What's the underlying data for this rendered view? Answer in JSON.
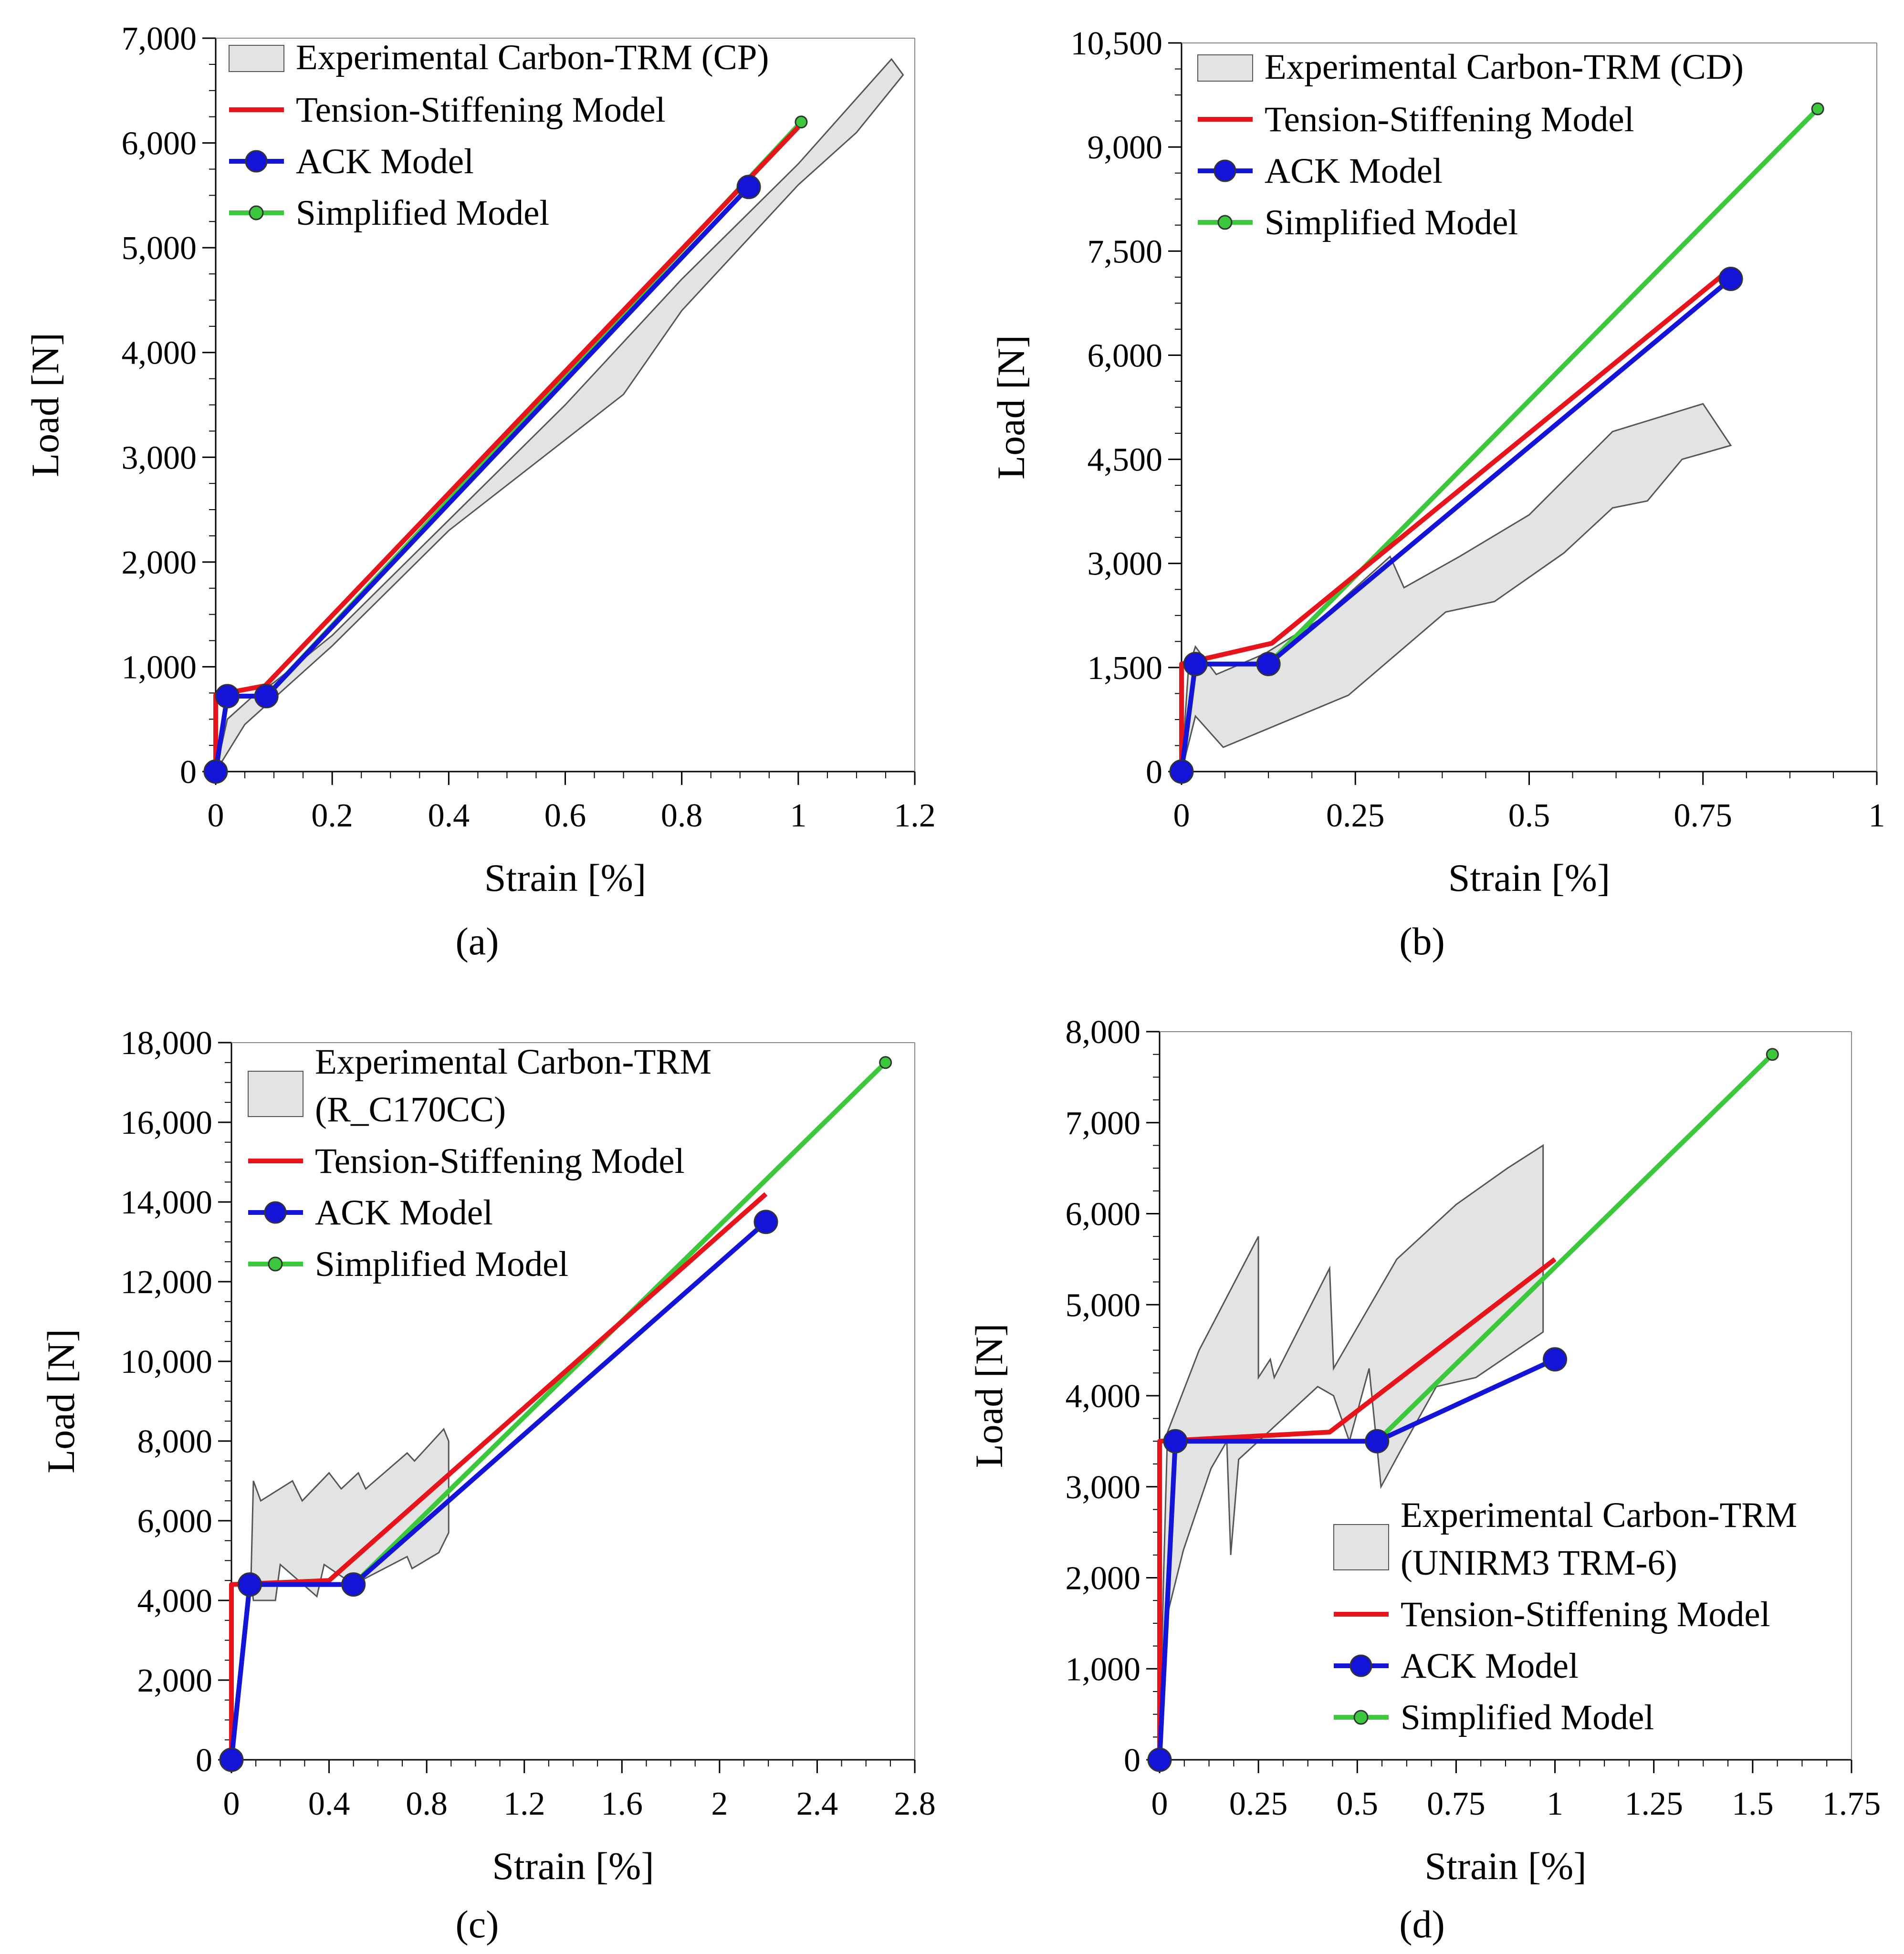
{
  "colors": {
    "tension_stiffening": "#e8141c",
    "ack": "#1414d8",
    "simplified": "#3cc83c",
    "experimental_fill": "#e3e3e3",
    "experimental_stroke": "#555555"
  },
  "legend": {
    "tension_stiffening": "Tension-Stiffening Model",
    "ack": "ACK Model",
    "simplified": "Simplified Model"
  },
  "chart_data": [
    {
      "type": "line",
      "panel": "(a)",
      "xlabel": "Strain  [%]",
      "ylabel": "Load [N]",
      "xlim": [
        0,
        1.2
      ],
      "ylim": [
        0,
        7000
      ],
      "xticks": [
        "0",
        "0.2",
        "0.4",
        "0.6",
        "0.8",
        "1",
        "1.2"
      ],
      "yticks": [
        "0",
        "1,000",
        "2,000",
        "3,000",
        "4,000",
        "5,000",
        "6,000",
        "7,000"
      ],
      "legend_position": "top-left",
      "experimental_label": [
        "Experimental Carbon-TRM (CP)"
      ],
      "experimental_band": {
        "upper": [
          [
            0,
            0
          ],
          [
            0.02,
            500
          ],
          [
            0.06,
            700
          ],
          [
            0.1,
            850
          ],
          [
            0.2,
            1300
          ],
          [
            0.4,
            2400
          ],
          [
            0.6,
            3500
          ],
          [
            0.8,
            4700
          ],
          [
            1.0,
            5800
          ],
          [
            1.16,
            6800
          ]
        ],
        "lower": [
          [
            1.18,
            6650
          ],
          [
            1.1,
            6100
          ],
          [
            1.0,
            5600
          ],
          [
            0.8,
            4400
          ],
          [
            0.7,
            3600
          ],
          [
            0.4,
            2300
          ],
          [
            0.2,
            1200
          ],
          [
            0.1,
            700
          ],
          [
            0.05,
            450
          ],
          [
            0,
            0
          ]
        ]
      },
      "series": [
        {
          "name": "Tension-Stiffening Model",
          "marker": "none",
          "points": [
            [
              0,
              0
            ],
            [
              0,
              730
            ],
            [
              0.085,
              820
            ],
            [
              1.0,
              6150
            ]
          ]
        },
        {
          "name": "ACK Model",
          "marker": "large",
          "points": [
            [
              0,
              0
            ],
            [
              0.02,
              720
            ],
            [
              0.087,
              720
            ],
            [
              0.915,
              5580
            ]
          ]
        },
        {
          "name": "Simplified Model",
          "marker": "small",
          "points": [
            [
              0,
              0
            ],
            [
              0.02,
              720
            ],
            [
              0.087,
              720
            ],
            [
              1.005,
              6200
            ]
          ]
        }
      ]
    },
    {
      "type": "line",
      "panel": "(b)",
      "xlabel": "Strain  [%]",
      "ylabel": "Load [N]",
      "xlim": [
        0,
        1
      ],
      "ylim": [
        0,
        10500
      ],
      "xticks": [
        "0",
        "0.25",
        "0.5",
        "0.75",
        "1"
      ],
      "yticks": [
        "0",
        "1,500",
        "3,000",
        "4,500",
        "6,000",
        "7,500",
        "9,000",
        "10,500"
      ],
      "legend_position": "top-left",
      "experimental_label": [
        "Experimental Carbon-TRM (CD)"
      ],
      "experimental_band": {
        "upper": [
          [
            0,
            0
          ],
          [
            0.01,
            1500
          ],
          [
            0.02,
            1800
          ],
          [
            0.05,
            1400
          ],
          [
            0.12,
            1700
          ],
          [
            0.2,
            2200
          ],
          [
            0.3,
            3100
          ],
          [
            0.32,
            2650
          ],
          [
            0.4,
            3100
          ],
          [
            0.5,
            3700
          ],
          [
            0.62,
            4900
          ],
          [
            0.75,
            5300
          ],
          [
            0.79,
            4700
          ]
        ],
        "lower": [
          [
            0.79,
            4700
          ],
          [
            0.72,
            4500
          ],
          [
            0.67,
            3900
          ],
          [
            0.62,
            3800
          ],
          [
            0.55,
            3150
          ],
          [
            0.45,
            2450
          ],
          [
            0.38,
            2300
          ],
          [
            0.24,
            1100
          ],
          [
            0.06,
            350
          ],
          [
            0.02,
            800
          ],
          [
            0,
            0
          ]
        ]
      },
      "series": [
        {
          "name": "Tension-Stiffening Model",
          "marker": "none",
          "points": [
            [
              0,
              0
            ],
            [
              0,
              1550
            ],
            [
              0.13,
              1850
            ],
            [
              0.79,
              7250
            ]
          ]
        },
        {
          "name": "ACK Model",
          "marker": "large",
          "points": [
            [
              0,
              0
            ],
            [
              0.02,
              1550
            ],
            [
              0.125,
              1550
            ],
            [
              0.79,
              7100
            ]
          ]
        },
        {
          "name": "Simplified Model",
          "marker": "small",
          "points": [
            [
              0,
              0
            ],
            [
              0.02,
              1550
            ],
            [
              0.125,
              1550
            ],
            [
              0.915,
              9550
            ]
          ]
        }
      ]
    },
    {
      "type": "line",
      "panel": "(c)",
      "xlabel": "Strain  [%]",
      "ylabel": "Load [N]",
      "xlim": [
        0,
        2.8
      ],
      "ylim": [
        0,
        18000
      ],
      "xticks": [
        "0",
        "0.4",
        "0.8",
        "1.2",
        "1.6",
        "2",
        "2.4",
        "2.8"
      ],
      "yticks": [
        "0",
        "2,000",
        "4,000",
        "6,000",
        "8,000",
        "10,000",
        "12,000",
        "14,000",
        "16,000",
        "18,000"
      ],
      "legend_position": "top-left",
      "experimental_label": [
        "Experimental Carbon-TRM",
        "(R_C170CC)"
      ],
      "experimental_band": {
        "upper": [
          [
            0.08,
            4500
          ],
          [
            0.09,
            7000
          ],
          [
            0.12,
            6500
          ],
          [
            0.25,
            7000
          ],
          [
            0.29,
            6500
          ],
          [
            0.4,
            7200
          ],
          [
            0.45,
            6800
          ],
          [
            0.52,
            7200
          ],
          [
            0.55,
            6800
          ],
          [
            0.72,
            7700
          ],
          [
            0.75,
            7500
          ],
          [
            0.87,
            8300
          ],
          [
            0.89,
            8000
          ]
        ],
        "lower": [
          [
            0.89,
            5700
          ],
          [
            0.85,
            5200
          ],
          [
            0.74,
            4800
          ],
          [
            0.72,
            5100
          ],
          [
            0.5,
            4400
          ],
          [
            0.38,
            4900
          ],
          [
            0.35,
            4100
          ],
          [
            0.2,
            4900
          ],
          [
            0.18,
            4000
          ],
          [
            0.09,
            4000
          ]
        ]
      },
      "series": [
        {
          "name": "Tension-Stiffening Model",
          "marker": "none",
          "points": [
            [
              0,
              0
            ],
            [
              0,
              4400
            ],
            [
              0.4,
              4500
            ],
            [
              2.19,
              14200
            ]
          ]
        },
        {
          "name": "ACK Model",
          "marker": "large",
          "points": [
            [
              0,
              0
            ],
            [
              0.075,
              4400
            ],
            [
              0.5,
              4400
            ],
            [
              2.19,
              13500
            ]
          ]
        },
        {
          "name": "Simplified Model",
          "marker": "small",
          "points": [
            [
              0,
              0
            ],
            [
              0.075,
              4400
            ],
            [
              0.5,
              4400
            ],
            [
              2.68,
              17500
            ]
          ]
        }
      ]
    },
    {
      "type": "line",
      "panel": "(d)",
      "xlabel": "Strain  [%]",
      "ylabel": "Load [N]",
      "xlim": [
        0,
        1.75
      ],
      "ylim": [
        0,
        8000
      ],
      "xticks": [
        "0",
        "0.25",
        "0.5",
        "0.75",
        "1",
        "1.25",
        "1.5",
        "1.75"
      ],
      "yticks": [
        "0",
        "1,000",
        "2,000",
        "3,000",
        "4,000",
        "5,000",
        "6,000",
        "7,000",
        "8,000"
      ],
      "legend_position": "bottom-right",
      "experimental_label": [
        "Experimental Carbon-TRM",
        "(UNIRM3 TRM-6)"
      ],
      "experimental_band": {
        "upper": [
          [
            0,
            0
          ],
          [
            0.01,
            2000
          ],
          [
            0.02,
            3600
          ],
          [
            0.1,
            4500
          ],
          [
            0.25,
            5750
          ],
          [
            0.25,
            4200
          ],
          [
            0.28,
            4400
          ],
          [
            0.29,
            4200
          ],
          [
            0.43,
            5400
          ],
          [
            0.44,
            4300
          ],
          [
            0.6,
            5500
          ],
          [
            0.75,
            6100
          ],
          [
            0.88,
            6500
          ],
          [
            0.97,
            6750
          ]
        ],
        "lower": [
          [
            0.97,
            6750
          ],
          [
            0.97,
            4700
          ],
          [
            0.8,
            4200
          ],
          [
            0.7,
            4100
          ],
          [
            0.61,
            3400
          ],
          [
            0.56,
            3000
          ],
          [
            0.53,
            4300
          ],
          [
            0.48,
            3500
          ],
          [
            0.44,
            4000
          ],
          [
            0.4,
            4100
          ],
          [
            0.2,
            3300
          ],
          [
            0.18,
            2250
          ],
          [
            0.17,
            3500
          ],
          [
            0.13,
            3200
          ],
          [
            0.06,
            2300
          ],
          [
            0.02,
            1600
          ],
          [
            0,
            0
          ]
        ]
      },
      "series": [
        {
          "name": "Tension-Stiffening Model",
          "marker": "none",
          "points": [
            [
              0,
              0
            ],
            [
              0,
              3500
            ],
            [
              0.43,
              3600
            ],
            [
              1.0,
              5500
            ]
          ]
        },
        {
          "name": "ACK Model",
          "marker": "large",
          "points": [
            [
              0,
              0
            ],
            [
              0.04,
              3500
            ],
            [
              0.55,
              3500
            ],
            [
              1.0,
              4400
            ]
          ]
        },
        {
          "name": "Simplified Model",
          "marker": "small",
          "points": [
            [
              0,
              0
            ],
            [
              0.04,
              3500
            ],
            [
              0.55,
              3500
            ],
            [
              1.55,
              7750
            ]
          ]
        }
      ]
    }
  ]
}
